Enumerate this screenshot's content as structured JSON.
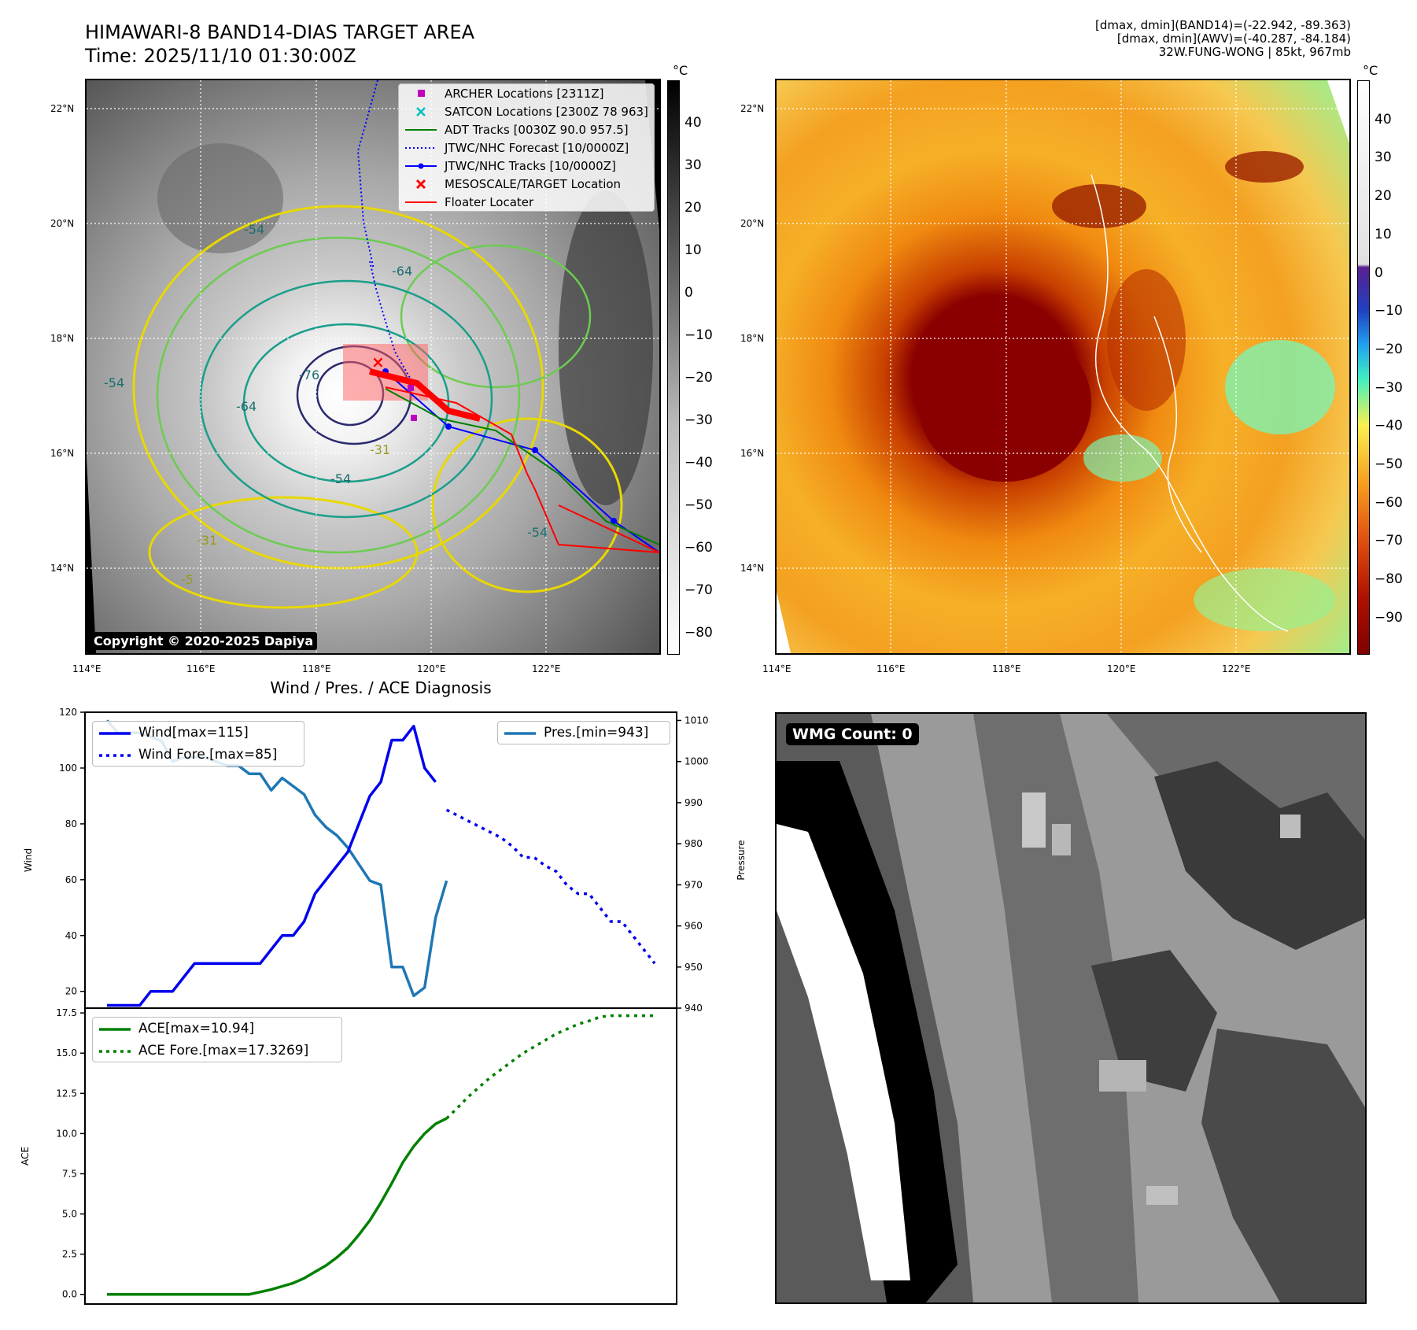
{
  "header": {
    "title_line1": "HIMAWARI-8 BAND14-DIAS TARGET AREA",
    "title_line2": "Time: 2025/11/10 01:30:00Z",
    "info_line1": "[dmax, dmin](BAND14)=(-22.942, -89.363)",
    "info_line2": "[dmax, dmin](AWV)=(-40.287, -84.184)",
    "info_line3": "32W.FUNG-WONG | 85kt, 967mb"
  },
  "colorbar_unit": "°C",
  "ir_panel": {
    "lat_labels": [
      "22°N",
      "20°N",
      "18°N",
      "16°N",
      "14°N"
    ],
    "lon_labels": [
      "114°E",
      "116°E",
      "118°E",
      "120°E",
      "122°E"
    ],
    "copyright": "Copyright © 2020-2025 Dapiya",
    "colorbar_ticks": [
      "40",
      "30",
      "20",
      "10",
      "0",
      "−10",
      "−20",
      "−30",
      "−40",
      "−50",
      "−60",
      "−70",
      "−80"
    ],
    "contour_labels": [
      "-54",
      "-64",
      "-76",
      "-31",
      "-54",
      "-64",
      "-54",
      "-31",
      "-54",
      "-5"
    ],
    "legend": [
      {
        "label": "ARCHER Locations [2311Z]",
        "color": "#bf00bf"
      },
      {
        "label": "SATCON Locations [2300Z 78 963]",
        "color": "#00bfbf"
      },
      {
        "label": "ADT Tracks [0030Z 90.0 957.5]",
        "color": "#008000"
      },
      {
        "label": "JTWC/NHC Forecast [10/0000Z]",
        "color": "#0000ff"
      },
      {
        "label": "JTWC/NHC Tracks [10/0000Z]",
        "color": "#0000ff"
      },
      {
        "label": "MESOSCALE/TARGET Location",
        "color": "#ff0000"
      },
      {
        "label": "Floater Locater",
        "color": "#ff0000"
      }
    ]
  },
  "awv_panel": {
    "lat_labels": [
      "22°N",
      "20°N",
      "18°N",
      "16°N",
      "14°N"
    ],
    "lon_labels": [
      "114°E",
      "116°E",
      "118°E",
      "120°E",
      "122°E"
    ],
    "colorbar_ticks": [
      "40",
      "30",
      "20",
      "10",
      "0",
      "−10",
      "−20",
      "−30",
      "−40",
      "−50",
      "−60",
      "−70",
      "−80",
      "−90"
    ]
  },
  "wmg_panel": {
    "label": "WMG Count: 0"
  },
  "chart_data": [
    {
      "type": "line",
      "title": "Wind / Pres. / ACE Diagnosis",
      "ylabel": "Wind",
      "ylabel_right": "Pressure",
      "ylim": [
        14,
        120
      ],
      "ylim_right": [
        940,
        1012
      ],
      "yticks": [
        20,
        40,
        60,
        80,
        100,
        120
      ],
      "yticks_right": [
        940,
        950,
        960,
        970,
        980,
        990,
        1000,
        1010
      ],
      "x_index_range": [
        -2,
        52
      ],
      "series": [
        {
          "name": "Wind[max=115]",
          "axis": "left",
          "style": "solid",
          "color": "#0000ee",
          "x": [
            0,
            1,
            2,
            3,
            4,
            5,
            6,
            7,
            8,
            9,
            10,
            11,
            12,
            13,
            14,
            15,
            16,
            17,
            18,
            19,
            20,
            21,
            22,
            23,
            24,
            25,
            26,
            27,
            28,
            29,
            30
          ],
          "values": [
            15,
            15,
            15,
            15,
            20,
            20,
            20,
            25,
            30,
            30,
            30,
            30,
            30,
            30,
            30,
            35,
            40,
            40,
            45,
            55,
            60,
            65,
            70,
            80,
            90,
            95,
            110,
            110,
            115,
            100,
            95
          ]
        },
        {
          "name": "Wind Fore.[max=85]",
          "axis": "left",
          "style": "dotted",
          "color": "#0000ee",
          "x": [
            31,
            32,
            33,
            34,
            35,
            36,
            37,
            38,
            39,
            40,
            41,
            42,
            43,
            44,
            45,
            46,
            47,
            48,
            49,
            50
          ],
          "values": [
            85,
            83,
            81,
            79,
            77,
            75,
            72,
            68,
            68,
            65,
            63,
            58,
            55,
            55,
            50,
            45,
            45,
            40,
            35,
            30
          ]
        },
        {
          "name": "Pres.[min=943]",
          "axis": "right",
          "style": "solid",
          "color": "#1f77b4",
          "x": [
            0,
            1,
            2,
            3,
            4,
            5,
            6,
            7,
            8,
            9,
            10,
            11,
            12,
            13,
            14,
            15,
            16,
            17,
            18,
            19,
            20,
            21,
            22,
            23,
            24,
            25,
            26,
            27,
            28,
            29,
            30,
            31
          ],
          "values": [
            1010,
            1007,
            1007,
            1007,
            1006,
            1005,
            1000,
            1001,
            1001,
            1001,
            1000,
            999,
            999,
            997,
            997,
            993,
            996,
            994,
            992,
            987,
            984,
            982,
            979,
            975,
            971,
            970,
            950,
            950,
            943,
            945,
            962,
            971
          ]
        }
      ]
    },
    {
      "type": "line",
      "ylabel": "ACE",
      "ylim": [
        -0.6,
        17.8
      ],
      "yticks": [
        0.0,
        2.5,
        5.0,
        7.5,
        10.0,
        12.5,
        15.0,
        17.5
      ],
      "ytick_labels": [
        "0.0",
        "2.5",
        "5.0",
        "7.5",
        "10.0",
        "12.5",
        "15.0",
        "17.5"
      ],
      "x_index_range": [
        -2,
        52
      ],
      "series": [
        {
          "name": "ACE[max=10.94]",
          "style": "solid",
          "color": "#008000",
          "x": [
            0,
            2,
            4,
            6,
            8,
            10,
            12,
            13,
            14,
            15,
            16,
            17,
            18,
            19,
            20,
            21,
            22,
            23,
            24,
            25,
            26,
            27,
            28,
            29,
            30,
            31
          ],
          "values": [
            0,
            0,
            0,
            0,
            0,
            0,
            0,
            0,
            0.15,
            0.3,
            0.5,
            0.7,
            1.0,
            1.4,
            1.8,
            2.3,
            2.9,
            3.7,
            4.6,
            5.7,
            6.9,
            8.2,
            9.2,
            10.0,
            10.6,
            10.94
          ]
        },
        {
          "name": "ACE Fore.[max=17.3269]",
          "style": "dotted",
          "color": "#008000",
          "x": [
            31,
            32,
            33,
            34,
            35,
            36,
            37,
            38,
            39,
            40,
            41,
            42,
            43,
            44,
            45,
            46,
            47,
            48,
            49,
            50
          ],
          "values": [
            10.94,
            11.6,
            12.3,
            12.9,
            13.5,
            14.0,
            14.5,
            15.0,
            15.4,
            15.8,
            16.2,
            16.5,
            16.8,
            17.0,
            17.25,
            17.33,
            17.33,
            17.33,
            17.33,
            17.33
          ]
        }
      ]
    }
  ]
}
